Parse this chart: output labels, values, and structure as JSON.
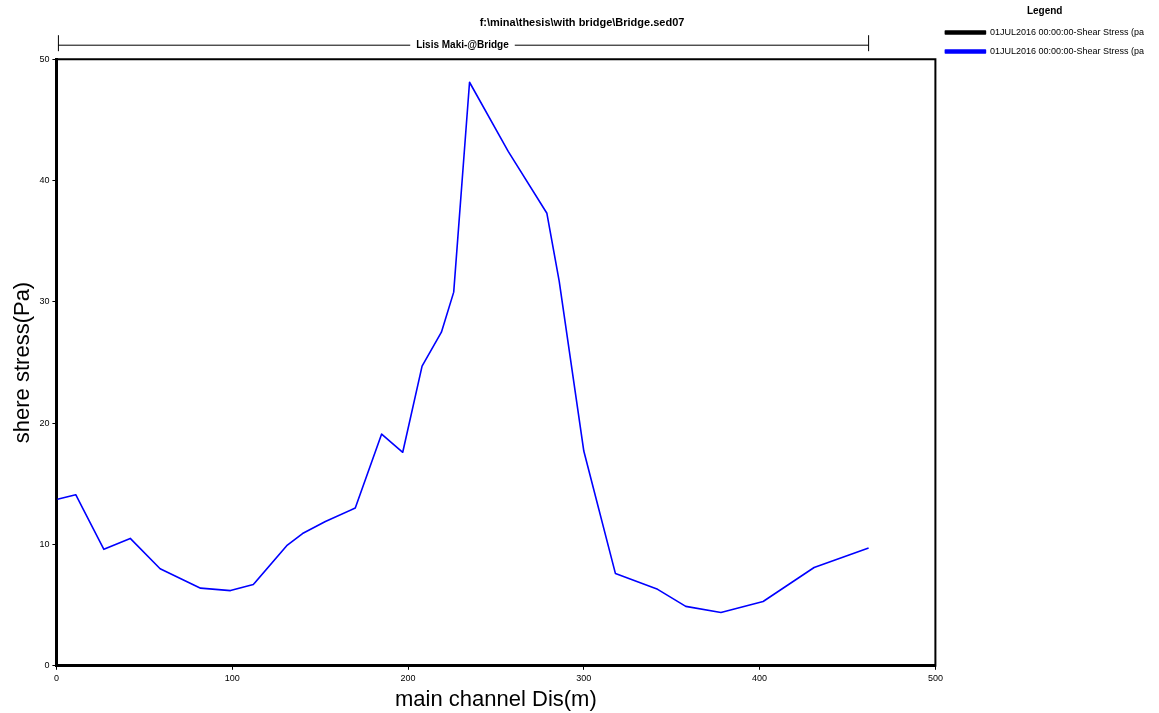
{
  "chart_data": {
    "type": "line",
    "title": "f:\\mina\\thesis\\with bridge\\Bridge.sed07",
    "subtitle": "Lisis Maki-@Bridge",
    "xlabel": "main channel Dis(m)",
    "ylabel": "shere stress(Pa)",
    "legend_title": "Legend",
    "legend": "top right",
    "grid": false,
    "marker": "none",
    "line_style": "solid",
    "xlim": [
      0,
      500
    ],
    "xticks": [
      0,
      100,
      200,
      300,
      400,
      500
    ],
    "ylim": [
      0,
      50
    ],
    "yticks": [
      0,
      10,
      20,
      30,
      40,
      50
    ],
    "x": [
      0,
      11,
      27,
      42,
      59,
      82,
      99,
      112,
      131,
      140,
      153,
      170,
      185,
      197,
      208,
      219,
      226,
      235,
      257,
      279,
      286,
      300,
      318,
      342,
      358,
      378,
      402,
      431,
      462
    ],
    "series": [
      {
        "name": "01JUL2016 00:00:00-Shear Stress (pa",
        "color": "#000000",
        "values": [
          null,
          null,
          null,
          null,
          null,
          null,
          null,
          null,
          null,
          null,
          null,
          null,
          null,
          null,
          null,
          null,
          null,
          null,
          null,
          null,
          null,
          null,
          null,
          null,
          null,
          null,
          null,
          null,
          null
        ]
      },
      {
        "name": "01JUL2016 00:00:00-Shear Stress (pa",
        "color": "#0000ff",
        "values": [
          13.7,
          14.1,
          9.6,
          10.5,
          8.0,
          6.4,
          6.2,
          6.7,
          9.9,
          10.9,
          11.9,
          13.0,
          19.1,
          17.6,
          24.7,
          27.5,
          30.8,
          48.1,
          42.4,
          37.3,
          31.7,
          17.7,
          7.6,
          6.3,
          4.9,
          4.4,
          5.3,
          8.1,
          9.7
        ]
      }
    ]
  }
}
